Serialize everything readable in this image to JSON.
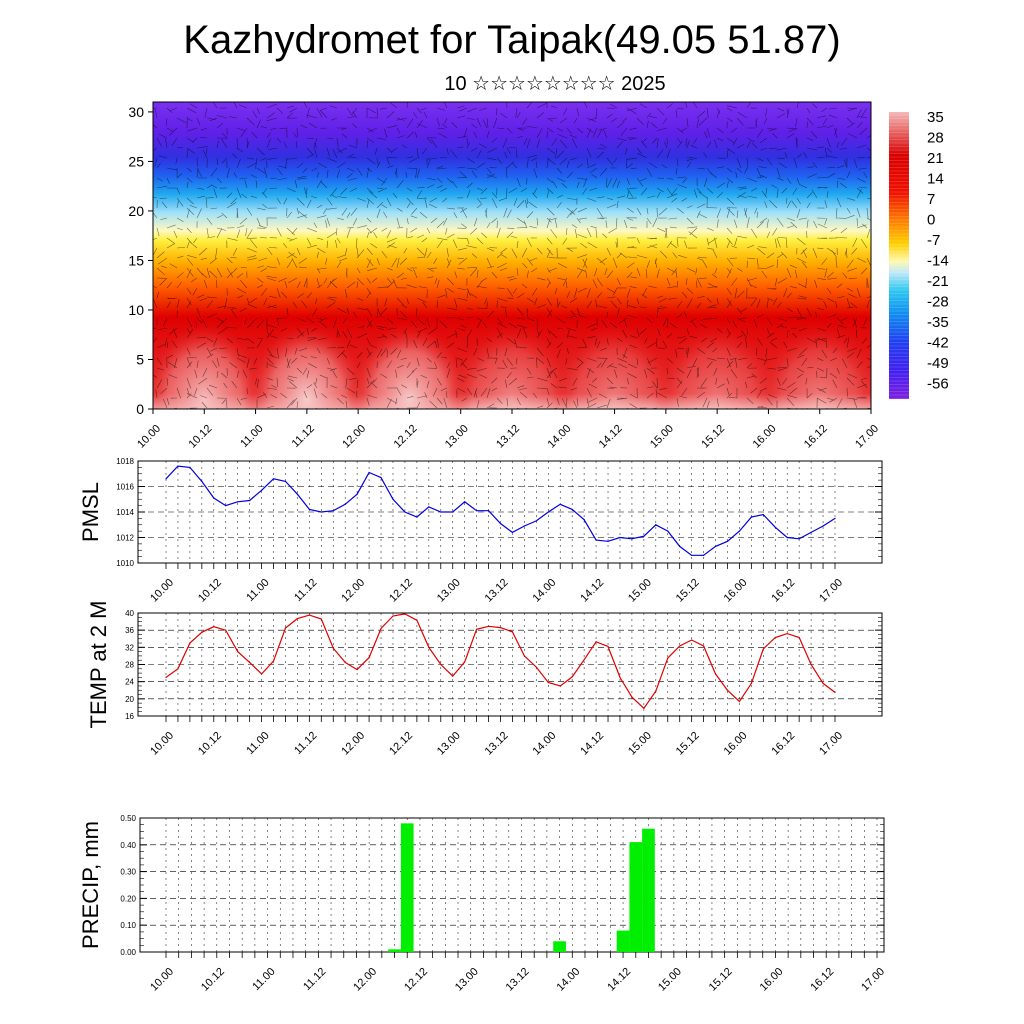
{
  "title": "Kazhydromet for Taipak(49.05 51.87)",
  "subtitle": "10 ☆☆☆☆☆☆☆☆ 2025",
  "time_labels": [
    "10.00",
    "10.12",
    "11.00",
    "11.12",
    "12.00",
    "12.12",
    "13.00",
    "13.12",
    "14.00",
    "14.12",
    "15.00",
    "15.12",
    "16.00",
    "16.12",
    "17.00"
  ],
  "chart_data": [
    {
      "type": "heatmap",
      "name": "temperature-cross-section",
      "x_labels": [
        "10.00",
        "10.12",
        "11.00",
        "11.12",
        "12.00",
        "12.12",
        "13.00",
        "13.12",
        "14.00",
        "14.12",
        "15.00",
        "15.12",
        "16.00",
        "16.12",
        "17.00"
      ],
      "y_ticks": [
        0,
        5,
        10,
        15,
        20,
        25,
        30
      ],
      "ylim": [
        0,
        31
      ],
      "colorbar": {
        "labels": [
          "35",
          "28",
          "21",
          "14",
          "7",
          "0",
          "-7",
          "-14",
          "-21",
          "-28",
          "-35",
          "-42",
          "-49",
          "-56"
        ],
        "range": [
          -60,
          38
        ]
      },
      "colors": {
        "hot": "#f7c0c0",
        "warm": "#e00000",
        "mid": "#ffe040",
        "cool": "#20a0f0",
        "cold": "#7020f0"
      }
    },
    {
      "type": "line",
      "ylabel": "PMSL",
      "ylim": [
        1010,
        1018
      ],
      "y_ticks": [
        1010,
        1012,
        1014,
        1016,
        1018
      ],
      "x_labels": [
        "10.00",
        "10.12",
        "11.00",
        "11.12",
        "12.00",
        "12.12",
        "13.00",
        "13.12",
        "14.00",
        "14.12",
        "15.00",
        "15.12",
        "16.00",
        "16.12",
        "17.00"
      ],
      "color": "#0000e0",
      "values": [
        1016.6,
        1017.6,
        1017.5,
        1016.4,
        1015.1,
        1014.5,
        1014.8,
        1014.9,
        1015.7,
        1016.6,
        1016.4,
        1015.4,
        1014.2,
        1014.0,
        1014.1,
        1014.6,
        1015.4,
        1017.1,
        1016.7,
        1015.0,
        1014.0,
        1013.6,
        1014.4,
        1014.0,
        1014.0,
        1014.8,
        1014.1,
        1014.1,
        1013.1,
        1012.4,
        1012.9,
        1013.3,
        1014.0,
        1014.6,
        1014.2,
        1013.4,
        1011.8,
        1011.7,
        1012.0,
        1011.9,
        1012.1,
        1013.0,
        1012.5,
        1011.3,
        1010.6,
        1010.6,
        1011.3,
        1011.7,
        1012.5,
        1013.6,
        1013.8,
        1012.8,
        1012.0,
        1011.9,
        1012.4,
        1012.9,
        1013.5
      ]
    },
    {
      "type": "line",
      "ylabel": "TEMP at 2 M",
      "ylim": [
        16,
        40
      ],
      "y_ticks": [
        16,
        20,
        24,
        28,
        32,
        36,
        40
      ],
      "x_labels": [
        "10.00",
        "10.12",
        "11.00",
        "11.12",
        "12.00",
        "12.12",
        "13.00",
        "13.12",
        "14.00",
        "14.12",
        "15.00",
        "15.12",
        "16.00",
        "16.12",
        "17.00"
      ],
      "color": "#e00000",
      "values": [
        25,
        27,
        33,
        35.5,
        36.8,
        36,
        31,
        28.5,
        25.8,
        28.8,
        36.5,
        38.7,
        39.5,
        38.6,
        31.8,
        28.5,
        26.8,
        29.6,
        36.4,
        39.3,
        39.8,
        38.3,
        32,
        28,
        25.3,
        28.6,
        36.2,
        36.9,
        36.6,
        35.6,
        30,
        27.4,
        23.8,
        23,
        25.1,
        29.1,
        33.3,
        32.2,
        25,
        20.4,
        17.8,
        21.8,
        29.5,
        32.3,
        33.7,
        32.3,
        25.8,
        22,
        19.4,
        23.6,
        31.6,
        34.3,
        35.2,
        34.3,
        28,
        23.6,
        21.5
      ]
    },
    {
      "type": "bar",
      "ylabel": "PRECIP, mm",
      "ylim": [
        0,
        0.5
      ],
      "y_ticks": [
        "0.00",
        "0.10",
        "0.20",
        "0.30",
        "0.40",
        "0.50"
      ],
      "x_labels": [
        "10.00",
        "10.12",
        "11.00",
        "11.12",
        "12.00",
        "12.12",
        "13.00",
        "13.12",
        "14.00",
        "14.12",
        "15.00",
        "15.12",
        "16.00",
        "16.12",
        "17.00"
      ],
      "color": "#00ee00",
      "values": [
        0,
        0,
        0,
        0,
        0,
        0,
        0,
        0,
        0,
        0,
        0,
        0,
        0,
        0,
        0,
        0,
        0,
        0,
        0.01,
        0.48,
        0,
        0,
        0,
        0,
        0,
        0,
        0,
        0,
        0,
        0,
        0,
        0.04,
        0,
        0,
        0,
        0,
        0.08,
        0.41,
        0.46,
        0,
        0,
        0,
        0,
        0,
        0,
        0,
        0,
        0,
        0,
        0,
        0,
        0,
        0,
        0,
        0,
        0,
        0
      ]
    }
  ]
}
